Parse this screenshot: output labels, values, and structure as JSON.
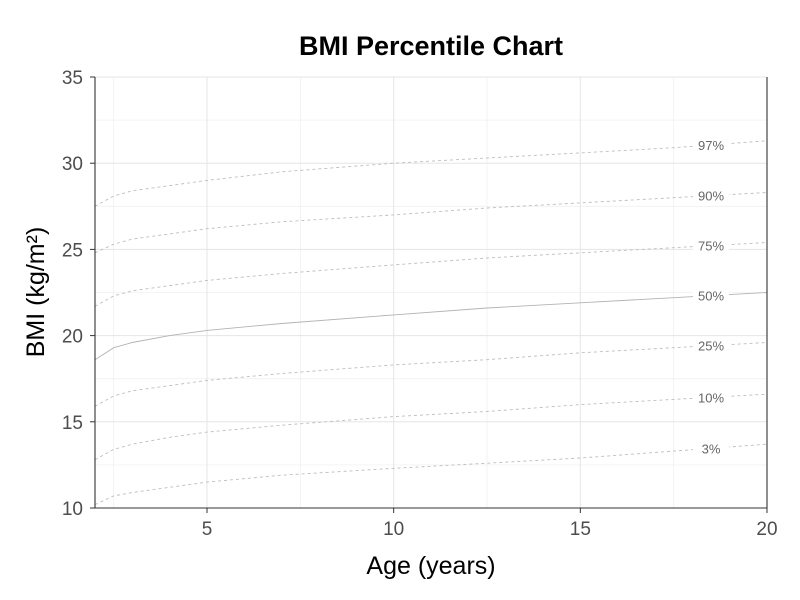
{
  "chart_data": {
    "type": "line",
    "title": "BMI Percentile Chart",
    "xlabel": "Age (years)",
    "ylabel": "BMI (kg/m²)",
    "xlim": [
      2,
      20
    ],
    "ylim": [
      10,
      35
    ],
    "x_ticks": [
      5,
      10,
      15,
      20
    ],
    "y_ticks": [
      10,
      15,
      20,
      25,
      30,
      35
    ],
    "grid": true,
    "legend": "none",
    "series": [
      {
        "name": "3%",
        "style": "dashed",
        "points": [
          [
            2,
            10.2
          ],
          [
            2.5,
            10.7
          ],
          [
            3,
            10.9
          ],
          [
            4,
            11.2
          ],
          [
            5,
            11.5
          ],
          [
            7,
            11.9
          ],
          [
            10,
            12.3
          ],
          [
            12.5,
            12.6
          ],
          [
            15,
            12.9
          ],
          [
            17.5,
            13.3
          ],
          [
            20,
            13.7
          ]
        ]
      },
      {
        "name": "10%",
        "style": "dashed",
        "points": [
          [
            2,
            12.8
          ],
          [
            2.5,
            13.4
          ],
          [
            3,
            13.7
          ],
          [
            4,
            14.1
          ],
          [
            5,
            14.4
          ],
          [
            7,
            14.8
          ],
          [
            10,
            15.3
          ],
          [
            12.5,
            15.6
          ],
          [
            15,
            16.0
          ],
          [
            17.5,
            16.3
          ],
          [
            20,
            16.6
          ]
        ]
      },
      {
        "name": "25%",
        "style": "dashed",
        "points": [
          [
            2,
            15.9
          ],
          [
            2.5,
            16.5
          ],
          [
            3,
            16.8
          ],
          [
            4,
            17.1
          ],
          [
            5,
            17.4
          ],
          [
            7,
            17.8
          ],
          [
            10,
            18.3
          ],
          [
            12.5,
            18.6
          ],
          [
            15,
            19.0
          ],
          [
            17.5,
            19.3
          ],
          [
            20,
            19.6
          ]
        ]
      },
      {
        "name": "50%",
        "style": "solid",
        "points": [
          [
            2,
            18.6
          ],
          [
            2.5,
            19.3
          ],
          [
            3,
            19.6
          ],
          [
            4,
            20.0
          ],
          [
            5,
            20.3
          ],
          [
            7,
            20.7
          ],
          [
            10,
            21.2
          ],
          [
            12.5,
            21.6
          ],
          [
            15,
            21.9
          ],
          [
            17.5,
            22.2
          ],
          [
            20,
            22.5
          ]
        ]
      },
      {
        "name": "75%",
        "style": "dashed",
        "points": [
          [
            2,
            21.7
          ],
          [
            2.5,
            22.3
          ],
          [
            3,
            22.6
          ],
          [
            4,
            22.9
          ],
          [
            5,
            23.2
          ],
          [
            7,
            23.6
          ],
          [
            10,
            24.1
          ],
          [
            12.5,
            24.5
          ],
          [
            15,
            24.8
          ],
          [
            17.5,
            25.1
          ],
          [
            20,
            25.4
          ]
        ]
      },
      {
        "name": "90%",
        "style": "dashed",
        "points": [
          [
            2,
            24.8
          ],
          [
            2.5,
            25.3
          ],
          [
            3,
            25.6
          ],
          [
            4,
            25.9
          ],
          [
            5,
            26.2
          ],
          [
            7,
            26.6
          ],
          [
            10,
            27.0
          ],
          [
            12.5,
            27.4
          ],
          [
            15,
            27.7
          ],
          [
            17.5,
            28.0
          ],
          [
            20,
            28.3
          ]
        ]
      },
      {
        "name": "97%",
        "style": "dashed",
        "points": [
          [
            2,
            27.5
          ],
          [
            2.5,
            28.1
          ],
          [
            3,
            28.4
          ],
          [
            4,
            28.7
          ],
          [
            5,
            29.0
          ],
          [
            7,
            29.5
          ],
          [
            10,
            30.0
          ],
          [
            12.5,
            30.3
          ],
          [
            15,
            30.6
          ],
          [
            17.5,
            30.9
          ],
          [
            20,
            31.3
          ]
        ]
      }
    ],
    "colors": {
      "curve": "#bdbdbd",
      "grid": "#e5e5e5",
      "axis": "#333333",
      "tick_text": "#4d4d4d",
      "label_text": "#666666"
    }
  }
}
